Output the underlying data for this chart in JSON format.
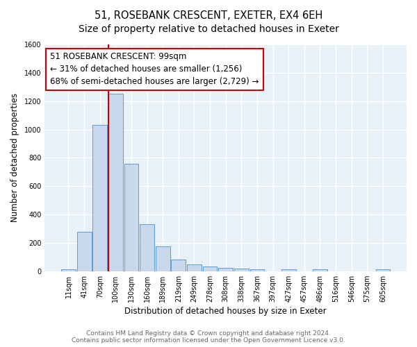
{
  "title": "51, ROSEBANK CRESCENT, EXETER, EX4 6EH",
  "subtitle": "Size of property relative to detached houses in Exeter",
  "xlabel": "Distribution of detached houses by size in Exeter",
  "ylabel": "Number of detached properties",
  "bin_labels": [
    "11sqm",
    "41sqm",
    "70sqm",
    "100sqm",
    "130sqm",
    "160sqm",
    "189sqm",
    "219sqm",
    "249sqm",
    "278sqm",
    "308sqm",
    "338sqm",
    "367sqm",
    "397sqm",
    "427sqm",
    "457sqm",
    "486sqm",
    "516sqm",
    "546sqm",
    "575sqm",
    "605sqm"
  ],
  "bar_values": [
    15,
    280,
    1030,
    1250,
    760,
    330,
    175,
    80,
    48,
    35,
    25,
    18,
    12,
    0,
    12,
    0,
    12,
    0,
    0,
    0,
    12
  ],
  "bar_color": "#c8d9ee",
  "bar_edge_color": "#5b9bd5",
  "vline_x_index": 3,
  "vline_color": "#cc0000",
  "annotation_line1": "51 ROSEBANK CRESCENT: 99sqm",
  "annotation_line2": "← 31% of detached houses are smaller (1,256)",
  "annotation_line3": "68% of semi-detached houses are larger (2,729) →",
  "annotation_box_color": "#ffffff",
  "annotation_box_edge": "#cc0000",
  "ylim": [
    0,
    1600
  ],
  "yticks": [
    0,
    200,
    400,
    600,
    800,
    1000,
    1200,
    1400,
    1600
  ],
  "footer_text": "Contains HM Land Registry data © Crown copyright and database right 2024.\nContains public sector information licensed under the Open Government Licence v3.0.",
  "plot_bg_color": "#e8f0f8",
  "fig_bg_color": "#ffffff",
  "grid_color": "#ffffff",
  "title_fontsize": 10.5,
  "xlabel_fontsize": 8.5,
  "ylabel_fontsize": 8.5,
  "footer_fontsize": 6.5,
  "annotation_fontsize": 8.5,
  "tick_fontsize": 7
}
